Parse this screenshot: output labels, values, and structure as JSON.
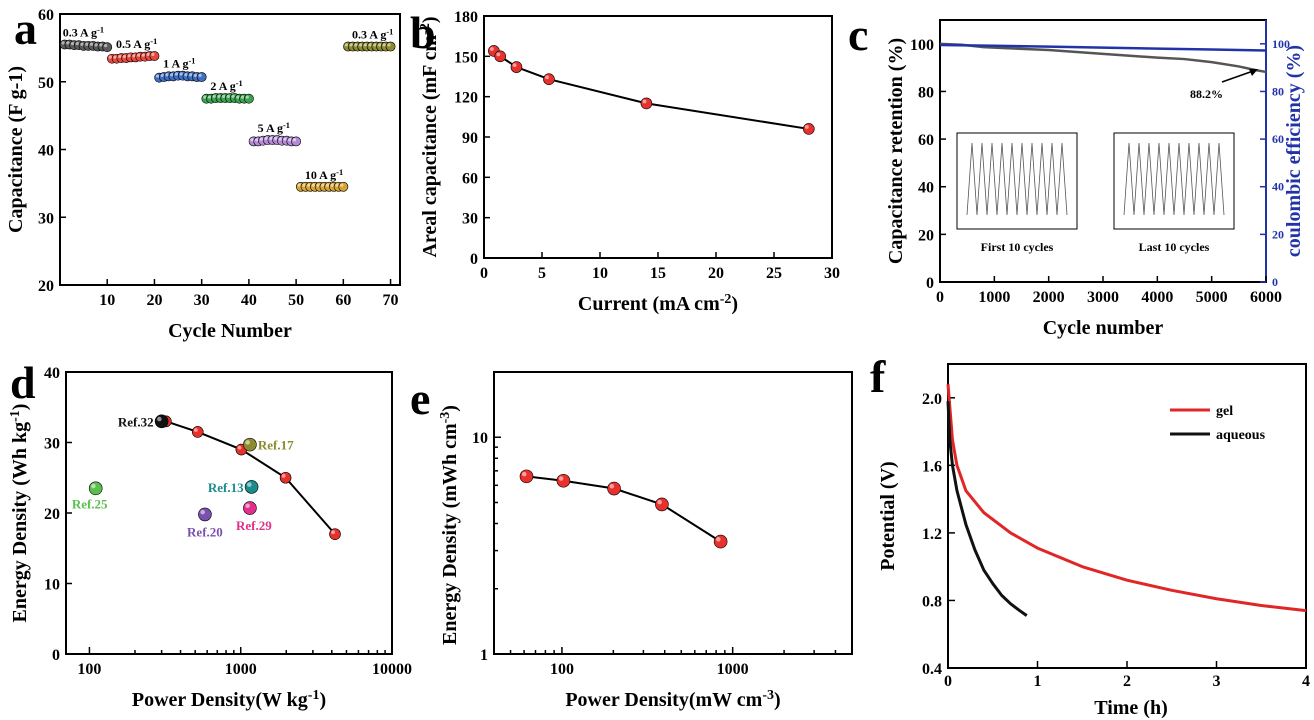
{
  "panels": {
    "a": {
      "label": "a",
      "chart_data": {
        "type": "scatter",
        "xlabel": "Cycle Number",
        "ylabel": "Capacitance (F g-1)",
        "xlim": [
          0,
          72
        ],
        "ylim": [
          20,
          60
        ],
        "xticks": [
          "10",
          "20",
          "30",
          "40",
          "50",
          "60",
          "70"
        ],
        "yticks": [
          "20",
          "30",
          "40",
          "50",
          "60"
        ],
        "series": [
          {
            "name": "0.3 A g-1",
            "color": "#5a5a5a",
            "x": [
              1,
              2,
              3,
              4,
              5,
              6,
              7,
              8,
              9,
              10
            ],
            "y": [
              55.5,
              55.5,
              55.4,
              55.4,
              55.3,
              55.3,
              55.3,
              55.2,
              55.2,
              55.1
            ]
          },
          {
            "name": "0.5 A g-1",
            "color": "#e8473e",
            "x": [
              11,
              12,
              13,
              14,
              15,
              16,
              17,
              18,
              19,
              20
            ],
            "y": [
              53.4,
              53.4,
              53.5,
              53.5,
              53.6,
              53.6,
              53.7,
              53.7,
              53.8,
              53.8
            ]
          },
          {
            "name": "1 A g-1",
            "color": "#3f6fc1",
            "x": [
              21,
              22,
              23,
              24,
              25,
              26,
              27,
              28,
              29,
              30
            ],
            "y": [
              50.6,
              50.7,
              50.8,
              50.8,
              50.9,
              50.9,
              50.8,
              50.8,
              50.7,
              50.7
            ]
          },
          {
            "name": "2 A g-1",
            "color": "#3aa24e",
            "x": [
              31,
              32,
              33,
              34,
              35,
              36,
              37,
              38,
              39,
              40
            ],
            "y": [
              47.5,
              47.5,
              47.6,
              47.6,
              47.6,
              47.6,
              47.6,
              47.5,
              47.5,
              47.5
            ]
          },
          {
            "name": "5 A g-1",
            "color": "#b48ad6",
            "x": [
              41,
              42,
              43,
              44,
              45,
              46,
              47,
              48,
              49,
              50
            ],
            "y": [
              41.2,
              41.2,
              41.3,
              41.4,
              41.4,
              41.4,
              41.3,
              41.3,
              41.2,
              41.2
            ]
          },
          {
            "name": "10 A g-1",
            "color": "#d8a532",
            "x": [
              51,
              52,
              53,
              54,
              55,
              56,
              57,
              58,
              59,
              60
            ],
            "y": [
              34.5,
              34.5,
              34.5,
              34.5,
              34.5,
              34.5,
              34.5,
              34.5,
              34.5,
              34.5
            ]
          },
          {
            "name": "0.3 A g-1",
            "color": "#8c8a2e",
            "x": [
              61,
              62,
              63,
              64,
              65,
              66,
              67,
              68,
              69,
              70
            ],
            "y": [
              55.2,
              55.2,
              55.2,
              55.2,
              55.2,
              55.2,
              55.2,
              55.2,
              55.2,
              55.2
            ]
          }
        ]
      }
    },
    "b": {
      "label": "b",
      "chart_data": {
        "type": "line",
        "xlabel": "Current (mA cm-2)",
        "ylabel": "Areal capacitance (mF cm-2)",
        "xlim": [
          0,
          30
        ],
        "ylim": [
          0,
          180
        ],
        "xticks": [
          "0",
          "5",
          "10",
          "15",
          "20",
          "25",
          "30"
        ],
        "yticks": [
          "0",
          "30",
          "60",
          "90",
          "120",
          "150",
          "180"
        ],
        "x": [
          0.85,
          1.4,
          2.8,
          5.6,
          14,
          28
        ],
        "y": [
          154,
          150,
          142,
          133,
          115,
          96
        ]
      }
    },
    "c": {
      "label": "c",
      "chart_data": {
        "type": "line",
        "xlabel": "Cycle number",
        "ylabel": "Capacitance retention (%)",
        "y2label": "coulombic efficiency (%)",
        "xlim": [
          0,
          6000
        ],
        "ylim": [
          0,
          110
        ],
        "y2lim": [
          0,
          110
        ],
        "xticks": [
          "0",
          "1000",
          "2000",
          "3000",
          "4000",
          "5000",
          "6000"
        ],
        "yticks": [
          "0",
          "20",
          "40",
          "60",
          "80",
          "100"
        ],
        "y2ticks": [
          "0",
          "20",
          "40",
          "60",
          "80",
          "100"
        ],
        "retention": {
          "x": [
            0,
            400,
            800,
            1200,
            2000,
            3000,
            4000,
            4500,
            5000,
            5500,
            5800,
            6000
          ],
          "y": [
            100,
            99.6,
            98.6,
            98.2,
            97.4,
            95.8,
            94.2,
            93.6,
            92.3,
            90.5,
            89,
            88.2
          ]
        },
        "efficiency": {
          "x": [
            0,
            1000,
            2000,
            3000,
            4000,
            5000,
            6000
          ],
          "y": [
            99.5,
            99.2,
            98.8,
            98.4,
            98,
            97.6,
            97.2
          ]
        },
        "annotation": "88.2%",
        "insets": [
          "First 10 cycles",
          "Last 10 cycles"
        ]
      }
    },
    "d": {
      "label": "d",
      "chart_data": {
        "type": "scatter",
        "xlabel": "Power Density(W kg-1)",
        "ylabel": "Energy Density (Wh kg-1)",
        "xscale": "log",
        "xlim": [
          70,
          10000
        ],
        "ylim": [
          0,
          40
        ],
        "xticks": [
          "100",
          "1000",
          "10000"
        ],
        "yticks": [
          "0",
          "10",
          "20",
          "30",
          "40"
        ],
        "x": [
          320,
          520,
          1010,
          1980,
          4200
        ],
        "y": [
          33,
          31.5,
          29,
          25,
          17
        ],
        "refs": [
          {
            "label": "Ref.32",
            "x": 300,
            "y": 33,
            "color": "#111111"
          },
          {
            "label": "Ref.17",
            "x": 1150,
            "y": 29.7,
            "color": "#8c8a2e"
          },
          {
            "label": "Ref.13",
            "x": 1180,
            "y": 23.7,
            "color": "#1a8c8c"
          },
          {
            "label": "Ref.25",
            "x": 110,
            "y": 23.5,
            "color": "#5bbf4e"
          },
          {
            "label": "Ref.20",
            "x": 580,
            "y": 19.8,
            "color": "#7a4fb0"
          },
          {
            "label": "Ref.29",
            "x": 1150,
            "y": 20.7,
            "color": "#e0308a"
          }
        ]
      }
    },
    "e": {
      "label": "e",
      "chart_data": {
        "type": "line",
        "xlabel": "Power Density(mW cm-3)",
        "ylabel": "Energy Density (mWh cm-3)",
        "xscale": "log",
        "yscale": "log",
        "xlim": [
          40,
          5000
        ],
        "ylim": [
          1,
          20
        ],
        "xticks": [
          "100",
          "1000"
        ],
        "yticks": [
          "1",
          "10"
        ],
        "x": [
          62,
          102,
          202,
          385,
          850
        ],
        "y": [
          6.6,
          6.3,
          5.8,
          4.9,
          3.3
        ]
      }
    },
    "f": {
      "label": "f",
      "chart_data": {
        "type": "line",
        "xlabel": "Time (h)",
        "ylabel": "Potential (V)",
        "xlim": [
          0,
          4
        ],
        "ylim": [
          0.4,
          2.2
        ],
        "xticks": [
          "0",
          "1",
          "2",
          "3",
          "4"
        ],
        "yticks": [
          "0.4",
          "0.8",
          "1.2",
          "1.6",
          "2.0"
        ],
        "series": [
          {
            "name": "gel",
            "color": "#e02626",
            "x": [
              0,
              0.05,
              0.1,
              0.2,
              0.4,
              0.7,
              1,
              1.5,
              2,
              2.5,
              3,
              3.5,
              4
            ],
            "y": [
              2.08,
              1.75,
              1.6,
              1.45,
              1.32,
              1.2,
              1.11,
              1,
              0.92,
              0.86,
              0.81,
              0.77,
              0.74
            ]
          },
          {
            "name": "aqueous",
            "color": "#111111",
            "x": [
              0,
              0.02,
              0.05,
              0.1,
              0.2,
              0.3,
              0.4,
              0.5,
              0.6,
              0.7,
              0.8,
              0.88
            ],
            "y": [
              1.98,
              1.75,
              1.6,
              1.45,
              1.25,
              1.1,
              0.98,
              0.9,
              0.83,
              0.78,
              0.74,
              0.71
            ]
          }
        ]
      }
    }
  }
}
